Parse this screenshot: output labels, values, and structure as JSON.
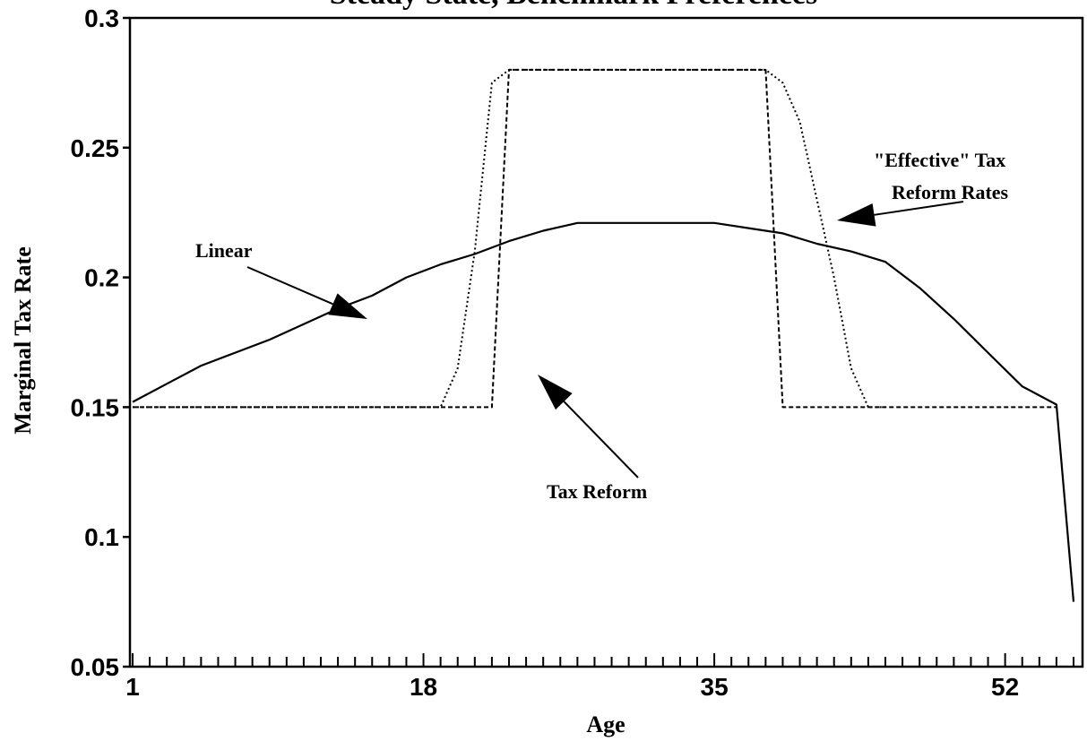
{
  "chart_data": {
    "type": "line",
    "title": "Steady State, Benchmark Preferences",
    "xlabel": "Age",
    "ylabel": "Marginal Tax Rate",
    "xlim": [
      1,
      56
    ],
    "ylim": [
      0.05,
      0.3
    ],
    "xticks": [
      1,
      18,
      35,
      52
    ],
    "xtick_labels": [
      "1",
      "18",
      "35",
      "52"
    ],
    "yticks": [
      0.05,
      0.1,
      0.15,
      0.2,
      0.25,
      0.3
    ],
    "ytick_labels": [
      "0.05",
      "0.1",
      "0.15",
      "0.2",
      "0.25",
      "0.3"
    ],
    "grid": false,
    "legend": "none",
    "series": [
      {
        "style": "solid",
        "x": [
          1,
          3,
          5,
          7,
          9,
          11,
          13,
          15,
          17,
          19,
          21,
          23,
          25,
          27,
          29,
          31,
          33,
          35,
          37,
          39,
          41,
          43,
          45,
          47,
          49,
          51,
          53,
          55,
          56
        ],
        "y": [
          0.152,
          0.159,
          0.166,
          0.171,
          0.176,
          0.182,
          0.188,
          0.193,
          0.2,
          0.205,
          0.209,
          0.214,
          0.218,
          0.221,
          0.221,
          0.221,
          0.221,
          0.221,
          0.219,
          0.217,
          0.213,
          0.21,
          0.206,
          0.196,
          0.184,
          0.171,
          0.158,
          0.151,
          0.075
        ]
      },
      {
        "style": "dashed",
        "x": [
          1,
          22,
          23,
          38,
          39,
          55
        ],
        "y": [
          0.15,
          0.15,
          0.28,
          0.28,
          0.15,
          0.15
        ]
      },
      {
        "style": "dotted",
        "x": [
          1,
          19,
          20,
          21,
          22,
          23,
          38,
          39,
          40,
          41,
          42,
          43,
          44,
          45
        ],
        "y": [
          0.15,
          0.15,
          0.165,
          0.21,
          0.275,
          0.28,
          0.28,
          0.275,
          0.26,
          0.23,
          0.2,
          0.165,
          0.15,
          0.15
        ]
      }
    ],
    "annotations": [
      {
        "text": "Linear"
      },
      {
        "text": "Tax Reform"
      },
      {
        "text": "\"Effective\" Tax"
      },
      {
        "text": "Reform Rates"
      }
    ]
  }
}
